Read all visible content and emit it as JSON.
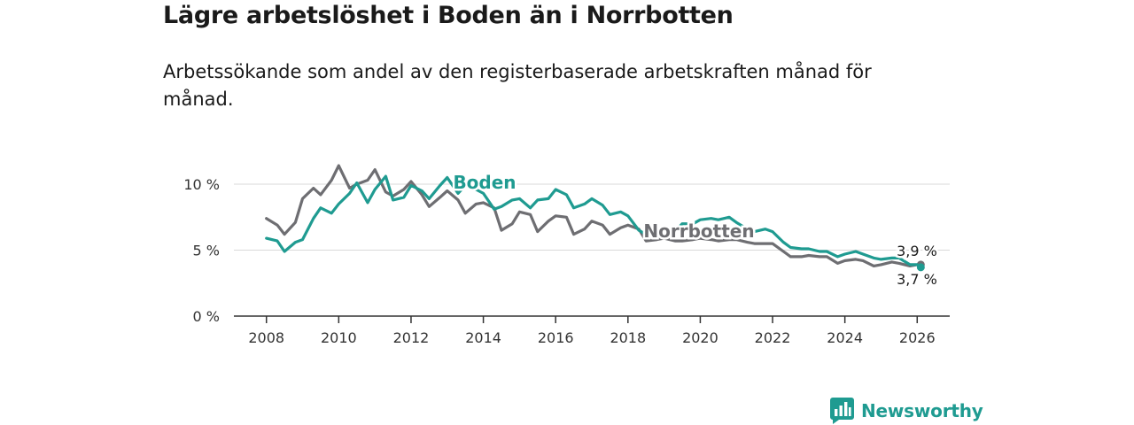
{
  "header": {
    "title": "Lägre arbetslöshet i Boden än i Norrbotten",
    "subtitle": "Arbetssökande som andel av den registerbaserade arbetskraften månad för månad."
  },
  "brand": {
    "name": "Newsworthy"
  },
  "colors": {
    "boden": "#1f9b91",
    "norrbotten": "#6e6e72",
    "grid": "#d9d9d9",
    "axis": "#333333"
  },
  "chart_data": {
    "type": "line",
    "title": "Lägre arbetslöshet i Boden än i Norrbotten",
    "xlabel": "",
    "ylabel": "",
    "xlim": [
      2007.1,
      2026.9
    ],
    "ylim": [
      0,
      10
    ],
    "x_ticks": [
      2008,
      2010,
      2012,
      2014,
      2016,
      2018,
      2020,
      2022,
      2024,
      2026
    ],
    "x_tick_labels": [
      "2008",
      "2010",
      "2012",
      "2014",
      "2016",
      "2018",
      "2020",
      "2022",
      "2024",
      "2026"
    ],
    "y_ticks": [
      0,
      5,
      10
    ],
    "y_tick_labels": [
      "0 %",
      "5 %",
      "10 %"
    ],
    "grid": true,
    "series": [
      {
        "name": "Boden",
        "label": "Boden",
        "color": "#1f9b91",
        "end_label": "3,7 %",
        "x": [
          2008.0,
          2008.3,
          2008.5,
          2008.8,
          2009.0,
          2009.3,
          2009.5,
          2009.8,
          2010.0,
          2010.3,
          2010.5,
          2010.8,
          2011.0,
          2011.3,
          2011.5,
          2011.8,
          2012.0,
          2012.3,
          2012.5,
          2012.8,
          2013.0,
          2013.3,
          2013.5,
          2013.8,
          2014.0,
          2014.3,
          2014.5,
          2014.8,
          2015.0,
          2015.3,
          2015.5,
          2015.8,
          2016.0,
          2016.3,
          2016.5,
          2016.8,
          2017.0,
          2017.3,
          2017.5,
          2017.8,
          2018.0,
          2018.3,
          2018.5,
          2018.8,
          2019.0,
          2019.3,
          2019.5,
          2019.8,
          2020.0,
          2020.3,
          2020.5,
          2020.8,
          2021.0,
          2021.3,
          2021.5,
          2021.8,
          2022.0,
          2022.3,
          2022.5,
          2022.8,
          2023.0,
          2023.3,
          2023.5,
          2023.8,
          2024.0,
          2024.3,
          2024.5,
          2024.8,
          2025.0,
          2025.3,
          2025.5,
          2025.8,
          2026.0,
          2026.1
        ],
        "values": [
          5.9,
          5.7,
          4.9,
          5.6,
          5.8,
          7.4,
          8.2,
          7.8,
          8.5,
          9.3,
          10.1,
          8.6,
          9.6,
          10.6,
          8.8,
          9.0,
          9.9,
          9.5,
          8.9,
          9.9,
          10.5,
          9.3,
          9.9,
          9.6,
          9.3,
          8.1,
          8.3,
          8.8,
          8.9,
          8.2,
          8.8,
          8.9,
          9.6,
          9.2,
          8.2,
          8.5,
          8.9,
          8.4,
          7.7,
          7.9,
          7.6,
          6.5,
          6.2,
          6.5,
          6.6,
          6.4,
          7.0,
          7.0,
          7.3,
          7.4,
          7.3,
          7.5,
          7.1,
          6.6,
          6.4,
          6.6,
          6.4,
          5.6,
          5.2,
          5.1,
          5.1,
          4.9,
          4.9,
          4.5,
          4.7,
          4.9,
          4.7,
          4.4,
          4.3,
          4.4,
          4.4,
          3.9,
          3.9,
          3.7
        ]
      },
      {
        "name": "Norrbotten",
        "label": "Norrbotten",
        "color": "#6e6e72",
        "end_label": "3,9 %",
        "x": [
          2008.0,
          2008.3,
          2008.5,
          2008.8,
          2009.0,
          2009.3,
          2009.5,
          2009.8,
          2010.0,
          2010.3,
          2010.5,
          2010.8,
          2011.0,
          2011.3,
          2011.5,
          2011.8,
          2012.0,
          2012.3,
          2012.5,
          2012.8,
          2013.0,
          2013.3,
          2013.5,
          2013.8,
          2014.0,
          2014.3,
          2014.5,
          2014.8,
          2015.0,
          2015.3,
          2015.5,
          2015.8,
          2016.0,
          2016.3,
          2016.5,
          2016.8,
          2017.0,
          2017.3,
          2017.5,
          2017.8,
          2018.0,
          2018.3,
          2018.5,
          2018.8,
          2019.0,
          2019.3,
          2019.5,
          2019.8,
          2020.0,
          2020.3,
          2020.5,
          2020.8,
          2021.0,
          2021.3,
          2021.5,
          2021.8,
          2022.0,
          2022.3,
          2022.5,
          2022.8,
          2023.0,
          2023.3,
          2023.5,
          2023.8,
          2024.0,
          2024.3,
          2024.5,
          2024.8,
          2025.0,
          2025.3,
          2025.5,
          2025.8,
          2026.0,
          2026.1
        ],
        "values": [
          7.4,
          6.9,
          6.2,
          7.1,
          8.9,
          9.7,
          9.2,
          10.3,
          11.4,
          9.7,
          10.0,
          10.3,
          11.1,
          9.4,
          9.1,
          9.6,
          10.2,
          9.2,
          8.3,
          9.0,
          9.5,
          8.8,
          7.8,
          8.5,
          8.6,
          8.2,
          6.5,
          7.0,
          7.9,
          7.7,
          6.4,
          7.2,
          7.6,
          7.5,
          6.2,
          6.6,
          7.2,
          6.9,
          6.2,
          6.7,
          6.9,
          6.6,
          5.7,
          5.8,
          5.9,
          5.7,
          5.7,
          5.8,
          5.9,
          5.8,
          5.7,
          5.8,
          5.8,
          5.6,
          5.5,
          5.5,
          5.5,
          4.9,
          4.5,
          4.5,
          4.6,
          4.5,
          4.5,
          4.0,
          4.2,
          4.3,
          4.2,
          3.8,
          3.9,
          4.1,
          4.0,
          3.8,
          3.9,
          3.9
        ]
      }
    ]
  }
}
